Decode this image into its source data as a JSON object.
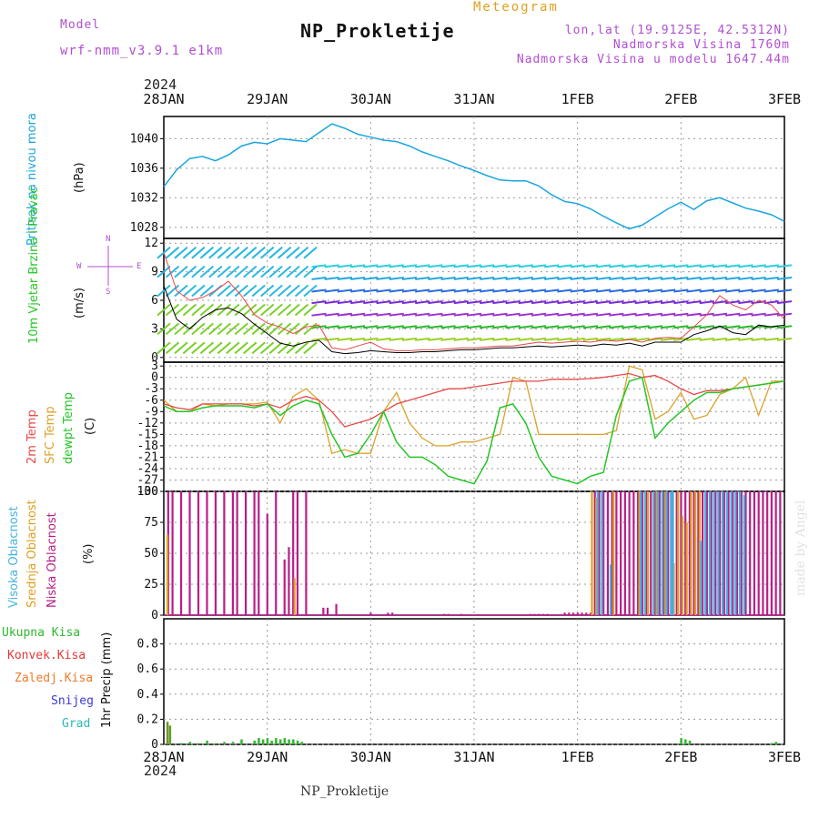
{
  "header": {
    "model_label": "Model",
    "model_name": "wrf-nmm_v3.9.1  e1km",
    "title": "NP_Prokletije",
    "meteogram": "Meteogram",
    "lonlat": "lon,lat (19.9125E, 42.5312N)",
    "elevation": "Nadmorska Visina 1760m",
    "model_elevation": "Nadmorska Visina u modelu 1647.44m",
    "year_top": "2024",
    "year_bottom": "2024",
    "footer": "NP_Prokletije",
    "watermark": "made by Angel"
  },
  "colors": {
    "pressure": "#1aa5e0",
    "temp2m": "#e84848",
    "sfc": "#dba22a",
    "dewpt": "#26c626",
    "high": "#46b4e0",
    "mid": "#e0a020",
    "low": "#b81e88",
    "total": "#2db82d",
    "convective": "#e23a3a",
    "frozen": "#f07a2a",
    "snow": "#3a3ad8",
    "hail": "#2ab8b8"
  },
  "chart_data": [
    {
      "type": "line",
      "panel": "pressure",
      "ylabel_left": "Pritisak na nivou mora",
      "ylabel_right": "(hPa)",
      "x_ticks": [
        "28JAN",
        "29JAN",
        "30JAN",
        "31JAN",
        "1FEB",
        "2FEB",
        "3FEB"
      ],
      "x_range": [
        0,
        144
      ],
      "ylim": [
        1026.5,
        1043
      ],
      "yticks": [
        1028,
        1032,
        1036,
        1040
      ],
      "grid": true,
      "series": [
        {
          "x": [
            0,
            3,
            6,
            9,
            12,
            15,
            18,
            21,
            24,
            27,
            30,
            33,
            36,
            39,
            42,
            45,
            48,
            51,
            54,
            57,
            60,
            63,
            66,
            69,
            72,
            75,
            78,
            81,
            84,
            87,
            90,
            93,
            96,
            99,
            102,
            105,
            108,
            111,
            114,
            117,
            120,
            123,
            126,
            129,
            132,
            135,
            138,
            141,
            144
          ],
          "y": [
            1033.5,
            1035.8,
            1037.3,
            1037.6,
            1037.0,
            1037.8,
            1039.0,
            1039.5,
            1039.3,
            1040.0,
            1039.8,
            1039.6,
            1040.8,
            1042.0,
            1041.4,
            1040.6,
            1040.2,
            1039.8,
            1039.6,
            1039.0,
            1038.2,
            1037.6,
            1037.0,
            1036.3,
            1035.7,
            1035.0,
            1034.4,
            1034.3,
            1034.3,
            1033.6,
            1032.4,
            1031.5,
            1031.2,
            1030.5,
            1029.5,
            1028.6,
            1027.8,
            1028.3,
            1029.4,
            1030.5,
            1031.4,
            1030.4,
            1031.6,
            1032.0,
            1031.3,
            1030.6,
            1030.2,
            1029.7,
            1028.8
          ]
        }
      ]
    },
    {
      "type": "line",
      "panel": "wind",
      "ylabel_left": "10m Vjetar Brzina i Pravac",
      "ylabel_right": "(m/s)",
      "compass": [
        "N",
        "E",
        "S",
        "W"
      ],
      "x_range": [
        0,
        144
      ],
      "ylim": [
        -0.5,
        12.5
      ],
      "yticks": [
        0,
        3,
        6,
        9,
        12
      ],
      "grid": true,
      "series": [
        {
          "name": "",
          "color": "black",
          "x": [
            0,
            3,
            6,
            9,
            12,
            15,
            18,
            21,
            24,
            27,
            30,
            33,
            36,
            39,
            42,
            45,
            48,
            51,
            54,
            57,
            60,
            63,
            66,
            69,
            72,
            75,
            78,
            81,
            84,
            87,
            90,
            93,
            96,
            99,
            102,
            105,
            108,
            111,
            114,
            117,
            120,
            123,
            126,
            129,
            132,
            135,
            138,
            141,
            144
          ],
          "y": [
            7.5,
            4.0,
            3.0,
            4.2,
            5.0,
            5.2,
            4.6,
            3.5,
            2.5,
            1.5,
            1.2,
            1.6,
            1.8,
            0.6,
            0.4,
            0.5,
            0.7,
            0.6,
            0.5,
            0.5,
            0.6,
            0.6,
            0.7,
            0.8,
            0.8,
            0.9,
            1.0,
            1.0,
            1.1,
            1.2,
            1.1,
            1.2,
            1.3,
            1.2,
            1.4,
            1.3,
            1.5,
            1.2,
            1.6,
            1.6,
            1.6,
            2.4,
            2.8,
            3.3,
            2.6,
            2.4,
            3.4,
            3.2,
            3.4
          ]
        },
        {
          "name": "",
          "color": "#e84848",
          "x": [
            0,
            3,
            6,
            9,
            12,
            15,
            18,
            21,
            24,
            27,
            30,
            33,
            36,
            39,
            42,
            45,
            48,
            51,
            54,
            57,
            60,
            63,
            66,
            69,
            72,
            75,
            78,
            81,
            84,
            87,
            90,
            93,
            96,
            99,
            102,
            105,
            108,
            111,
            114,
            117,
            120,
            123,
            126,
            129,
            132,
            135,
            138,
            141,
            144
          ],
          "y": [
            11.0,
            7.0,
            6.0,
            6.3,
            7.0,
            8.0,
            6.5,
            4.5,
            3.6,
            3.2,
            2.5,
            3.2,
            3.4,
            1.0,
            0.8,
            1.2,
            1.6,
            0.9,
            0.7,
            0.7,
            0.8,
            0.8,
            0.9,
            1.0,
            1.0,
            1.1,
            1.2,
            1.2,
            1.4,
            1.6,
            1.5,
            1.6,
            1.7,
            1.6,
            1.8,
            1.7,
            1.9,
            1.6,
            2.0,
            2.1,
            2.0,
            3.2,
            4.5,
            6.5,
            5.5,
            5.0,
            6.0,
            5.5,
            4.0
          ]
        }
      ]
    },
    {
      "type": "line",
      "panel": "temperature",
      "ylabel_left": [
        "2m Temp",
        "SFC Temp",
        "dewpt Temp"
      ],
      "ylabel_right": "(C)",
      "x_range": [
        0,
        144
      ],
      "ylim": [
        -30,
        4
      ],
      "yticks": [
        3,
        0,
        -3,
        -6,
        -9,
        -12,
        -15,
        -18,
        -21,
        -24,
        -27,
        -30
      ],
      "grid": true,
      "series": [
        {
          "name": "2m Temp",
          "x": [
            0,
            3,
            6,
            9,
            12,
            15,
            18,
            21,
            24,
            27,
            30,
            33,
            36,
            39,
            42,
            45,
            48,
            51,
            54,
            57,
            60,
            63,
            66,
            69,
            72,
            75,
            78,
            81,
            84,
            87,
            90,
            93,
            96,
            99,
            102,
            105,
            108,
            111,
            114,
            117,
            120,
            123,
            126,
            129,
            132,
            135,
            138,
            141,
            144
          ],
          "y": [
            -7,
            -8,
            -8.5,
            -7,
            -7,
            -7,
            -7,
            -7.5,
            -7,
            -8,
            -6,
            -5,
            -6,
            -9,
            -13,
            -12,
            -11,
            -9,
            -7,
            -6,
            -5,
            -4,
            -3,
            -3,
            -2.5,
            -2,
            -1.5,
            -1,
            -1,
            -1,
            -0.5,
            -0.5,
            -0.5,
            -0.3,
            0,
            0.5,
            1,
            0,
            0.5,
            -1,
            -3,
            -4.5,
            -3.5,
            -3.5,
            -3,
            -2.5,
            -2,
            -1.5,
            -1
          ]
        },
        {
          "name": "SFC Temp",
          "x": [
            0,
            3,
            6,
            9,
            12,
            15,
            18,
            21,
            24,
            27,
            30,
            33,
            36,
            39,
            42,
            45,
            48,
            51,
            54,
            57,
            60,
            63,
            66,
            69,
            72,
            75,
            78,
            81,
            84,
            87,
            90,
            93,
            96,
            99,
            102,
            105,
            108,
            111,
            114,
            117,
            120,
            123,
            126,
            129,
            132,
            135,
            138,
            141,
            144
          ],
          "y": [
            -6,
            -9,
            -9,
            -7,
            -7.5,
            -7,
            -7,
            -7,
            -6.5,
            -12,
            -5,
            -3,
            -6,
            -20,
            -19,
            -20,
            -20,
            -9,
            -4,
            -12,
            -16,
            -18,
            -18,
            -17,
            -17,
            -16,
            -15,
            0,
            -1,
            -15,
            -15,
            -15,
            -15,
            -15,
            -15,
            -14,
            3,
            2,
            -11,
            -9,
            -4,
            -11,
            -10,
            -4.5,
            -3,
            0,
            -10,
            -1,
            -1
          ]
        },
        {
          "name": "dewpt Temp",
          "x": [
            0,
            3,
            6,
            9,
            12,
            15,
            18,
            21,
            24,
            27,
            30,
            33,
            36,
            39,
            42,
            45,
            48,
            51,
            54,
            57,
            60,
            63,
            66,
            69,
            72,
            75,
            78,
            81,
            84,
            87,
            90,
            93,
            96,
            99,
            102,
            105,
            108,
            111,
            114,
            117,
            120,
            123,
            126,
            129,
            132,
            135,
            138,
            141,
            144
          ],
          "y": [
            -7.5,
            -9,
            -9,
            -8,
            -7.5,
            -7.5,
            -7.5,
            -8,
            -7,
            -10,
            -7.5,
            -6,
            -7,
            -15,
            -21,
            -20,
            -15,
            -9,
            -17,
            -21,
            -21,
            -23,
            -26,
            -27,
            -28,
            -22,
            -8,
            -7,
            -12,
            -21,
            -26,
            -27,
            -28,
            -26,
            -25,
            -10,
            -1,
            0,
            -16,
            -12,
            -9,
            -6,
            -4,
            -4,
            -3,
            -2.5,
            -2,
            -1.5,
            -1
          ]
        }
      ]
    },
    {
      "type": "bar",
      "panel": "clouds",
      "ylabel_left": [
        "Visoka Oblacnost",
        "Srednja Oblacnost",
        "Niska Oblacnost"
      ],
      "ylabel_right": "(%)",
      "x_range": [
        0,
        144
      ],
      "ylim": [
        0,
        100
      ],
      "yticks": [
        0,
        25,
        50,
        75,
        100
      ],
      "grid": true,
      "series": [
        {
          "name": "Niska Oblacnost",
          "x": [
            1,
            2,
            4,
            6,
            8,
            10,
            12,
            14,
            16,
            17,
            19,
            21,
            22,
            24,
            26,
            28,
            29,
            30,
            31,
            33,
            37,
            38,
            40,
            48,
            52,
            53,
            65,
            66,
            69,
            85,
            86,
            87,
            88,
            89,
            93,
            94,
            95,
            96,
            97,
            98,
            99,
            100,
            101,
            102,
            103,
            104,
            105,
            106,
            107,
            108,
            109,
            110,
            111,
            112,
            113,
            114,
            115,
            116,
            117,
            118,
            119,
            120,
            121,
            122,
            123,
            124,
            125,
            126,
            127,
            128,
            129,
            130,
            131,
            132,
            133,
            134,
            135,
            136,
            137,
            138,
            139,
            140,
            141,
            142,
            143
          ],
          "y": [
            100,
            100,
            100,
            100,
            100,
            100,
            100,
            100,
            100,
            100,
            100,
            100,
            100,
            82,
            100,
            45,
            55,
            100,
            100,
            100,
            6,
            6,
            9,
            2,
            2,
            2,
            1,
            1,
            1,
            1,
            1,
            1,
            1,
            1,
            2,
            2,
            2,
            2,
            2,
            2,
            2,
            100,
            100,
            100,
            100,
            100,
            100,
            100,
            100,
            100,
            100,
            100,
            100,
            100,
            100,
            100,
            100,
            100,
            100,
            100,
            100,
            100,
            100,
            100,
            100,
            100,
            100,
            100,
            100,
            100,
            100,
            100,
            100,
            100,
            100,
            100,
            100,
            100,
            100,
            100,
            100,
            100,
            100,
            100,
            100
          ]
        },
        {
          "name": "Srednja Oblacnost",
          "x": [
            0.5,
            30,
            99,
            100,
            104,
            110,
            112,
            114,
            116,
            118,
            119,
            120,
            121,
            122,
            123,
            124
          ],
          "y": [
            65,
            30,
            100,
            95,
            100,
            100,
            100,
            100,
            100,
            42,
            100,
            80,
            75,
            100,
            100,
            100
          ]
        },
        {
          "name": "Visoka Oblacnost",
          "x": [
            100,
            101,
            103,
            110,
            111,
            113,
            114,
            115,
            116,
            117,
            117.5,
            124,
            125,
            126,
            127,
            128,
            129,
            130,
            131,
            132,
            133,
            134
          ],
          "y": [
            100,
            100,
            41,
            100,
            100,
            100,
            100,
            100,
            100,
            100,
            100,
            60,
            100,
            100,
            100,
            100,
            100,
            100,
            100,
            100,
            100,
            97
          ]
        }
      ]
    },
    {
      "type": "bar",
      "panel": "precip",
      "ylabel_left": [
        "Ukupna Kisa",
        "Konvek.Kisa",
        "Zaledj.Kisa",
        "Snijeg",
        "Grad"
      ],
      "ylabel_right": "1hr Precip (mm)",
      "x_range": [
        0,
        144
      ],
      "ylim": [
        0,
        1.0
      ],
      "yticks": [
        0,
        0.2,
        0.4,
        0.6,
        0.8
      ],
      "grid": true,
      "series": [
        {
          "name": "Ukupna Kisa",
          "x": [
            0.8,
            1.4,
            4,
            6,
            8,
            10,
            12,
            14,
            16,
            18,
            21,
            22,
            23,
            24,
            25,
            26,
            27,
            28,
            29,
            30,
            31,
            32,
            120,
            121,
            122,
            141,
            142
          ],
          "y": [
            0.18,
            0.15,
            0.01,
            0.02,
            0.01,
            0.03,
            0.01,
            0.02,
            0.02,
            0.04,
            0.03,
            0.05,
            0.04,
            0.05,
            0.03,
            0.05,
            0.04,
            0.05,
            0.04,
            0.04,
            0.03,
            0.02,
            0.05,
            0.04,
            0.03,
            0.01,
            0.02
          ]
        }
      ]
    }
  ]
}
